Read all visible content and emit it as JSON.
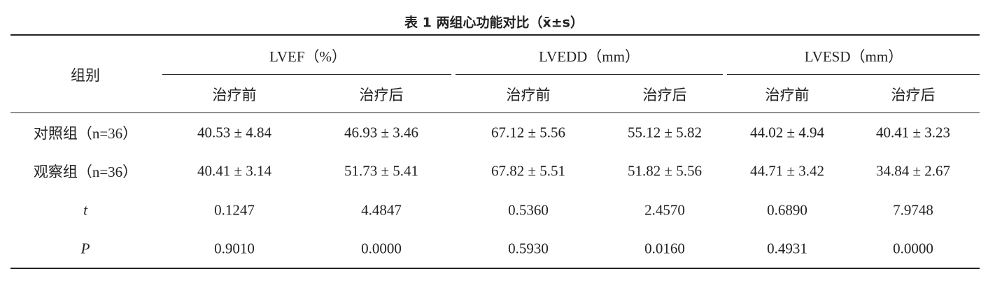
{
  "title": "表 1 两组心功能对比（x̄±s）",
  "table": {
    "group_header": "组别",
    "groups": [
      "LVEF（%）",
      "LVEDD（mm）",
      "LVESD（mm）"
    ],
    "subheaders": [
      "治疗前",
      "治疗后",
      "治疗前",
      "治疗后",
      "治疗前",
      "治疗后"
    ],
    "rows": [
      [
        "对照组（n=36）",
        "40.53 ± 4.84",
        "46.93 ± 3.46",
        "67.12 ± 5.56",
        "55.12 ± 5.82",
        "44.02 ± 4.94",
        "40.41 ± 3.23"
      ],
      [
        "观察组（n=36）",
        "40.41 ± 3.14",
        "51.73 ± 5.41",
        "67.82 ± 5.51",
        "51.82 ± 5.56",
        "44.71 ± 3.42",
        "34.84 ± 2.67"
      ],
      [
        "t",
        "0.1247",
        "4.4847",
        "0.5360",
        "2.4570",
        "0.6890",
        "7.9748"
      ],
      [
        "P",
        "0.9010",
        "0.0000",
        "0.5930",
        "0.0160",
        "0.4931",
        "0.0000"
      ]
    ]
  }
}
